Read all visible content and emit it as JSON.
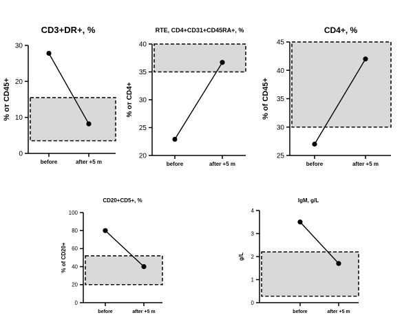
{
  "chart_data": [
    {
      "type": "line",
      "title": "CD3+DR+, %",
      "ylabel": "% от CD45+",
      "categories": [
        "before",
        "after +5 m"
      ],
      "values": [
        27.8,
        8.2
      ],
      "ylim": [
        0,
        30
      ],
      "yticks": [
        0,
        10,
        20,
        30
      ],
      "reference_range": [
        3.5,
        15.5
      ],
      "grid": false
    },
    {
      "type": "line",
      "title": "RTE, CD4+CD31+CD45RA+, %",
      "ylabel": "% от CD4+",
      "categories": [
        "before",
        "after +5 m"
      ],
      "values": [
        22.9,
        36.7
      ],
      "ylim": [
        20,
        40
      ],
      "yticks": [
        20,
        25,
        30,
        35,
        40
      ],
      "reference_range": [
        35,
        40
      ],
      "grid": false
    },
    {
      "type": "line",
      "title": "CD4+, %",
      "ylabel": "% of CD45+",
      "categories": [
        "before",
        "after +5 m"
      ],
      "values": [
        27,
        42
      ],
      "ylim": [
        25,
        45
      ],
      "yticks": [
        25,
        30,
        35,
        40,
        45
      ],
      "reference_range": [
        30,
        45
      ],
      "grid": false
    },
    {
      "type": "line",
      "title": "CD20+CD5+, %",
      "ylabel": "% of CD20+",
      "categories": [
        "before",
        "after +5 m"
      ],
      "values": [
        80,
        40
      ],
      "ylim": [
        0,
        100
      ],
      "yticks": [
        0,
        20,
        40,
        60,
        80,
        100
      ],
      "reference_range": [
        20,
        52
      ],
      "grid": false
    },
    {
      "type": "line",
      "title": "IgM, g/L",
      "ylabel": "g/L",
      "categories": [
        "before",
        "after +5 m"
      ],
      "values": [
        3.5,
        1.7
      ],
      "ylim": [
        0,
        4
      ],
      "yticks": [
        0,
        1,
        2,
        3,
        4
      ],
      "reference_range": [
        0.28,
        2.2
      ],
      "grid": false
    }
  ]
}
